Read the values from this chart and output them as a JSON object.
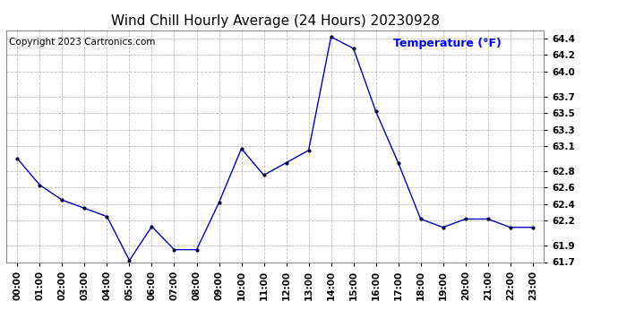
{
  "title": "Wind Chill Hourly Average (24 Hours) 20230928",
  "ylabel": "Temperature (°F)",
  "copyright_text": "Copyright 2023 Cartronics.com",
  "hours": [
    "00:00",
    "01:00",
    "02:00",
    "03:00",
    "04:00",
    "05:00",
    "06:00",
    "07:00",
    "08:00",
    "09:00",
    "10:00",
    "11:00",
    "12:00",
    "13:00",
    "14:00",
    "15:00",
    "16:00",
    "17:00",
    "18:00",
    "19:00",
    "20:00",
    "21:00",
    "22:00",
    "23:00"
  ],
  "values": [
    62.95,
    62.63,
    62.45,
    62.35,
    62.25,
    61.72,
    62.13,
    61.85,
    61.85,
    62.42,
    63.07,
    62.75,
    62.9,
    63.05,
    64.42,
    64.28,
    63.52,
    62.9,
    62.22,
    62.12,
    62.22,
    62.22,
    62.12,
    62.12
  ],
  "line_color": "#0000cc",
  "marker": ".",
  "marker_color": "#000033",
  "ylim_min": 61.7,
  "ylim_max": 64.5,
  "yticks": [
    61.7,
    61.9,
    62.2,
    62.4,
    62.6,
    62.8,
    63.1,
    63.3,
    63.5,
    63.7,
    64.0,
    64.2,
    64.4
  ],
  "background_color": "#ffffff",
  "grid_color": "#bbbbbb",
  "title_color": "#000000",
  "ylabel_color": "#0000ff",
  "copyright_color": "#000000",
  "title_fontsize": 11,
  "ylabel_fontsize": 9,
  "copyright_fontsize": 7.5,
  "tick_fontsize": 7.5
}
